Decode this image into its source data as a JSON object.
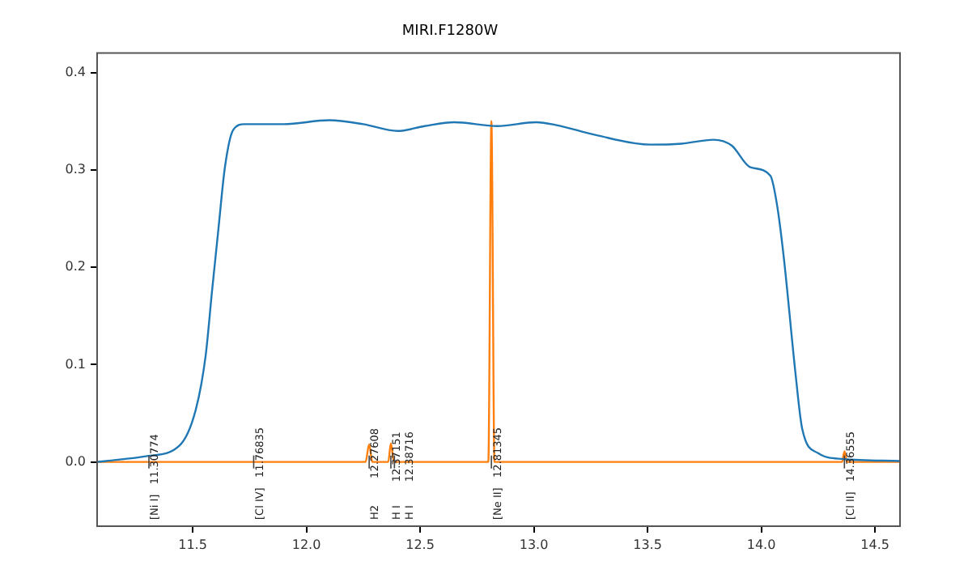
{
  "chart_data": {
    "type": "line",
    "title": "MIRI.F1280W",
    "series": [
      {
        "color": "#1f77b4",
        "x": [
          11.08,
          11.12,
          11.3,
          11.443,
          11.514,
          11.557,
          11.585,
          11.614,
          11.642,
          11.678,
          11.728,
          11.9,
          12.1,
          12.25,
          12.4,
          12.52,
          12.65,
          12.84,
          13.01,
          13.1,
          13.27,
          13.51,
          13.65,
          13.79,
          13.87,
          13.95,
          14.04,
          14.07,
          14.1,
          14.15,
          14.18,
          14.25,
          14.36,
          14.61
        ],
        "values": [
          0,
          0.001,
          0.006,
          0.017,
          0.054,
          0.109,
          0.175,
          0.241,
          0.303,
          0.341,
          0.347,
          0.347,
          0.351,
          0.347,
          0.34,
          0.345,
          0.349,
          0.345,
          0.349,
          0.346,
          0.336,
          0.326,
          0.327,
          0.331,
          0.325,
          0.303,
          0.294,
          0.263,
          0.208,
          0.092,
          0.034,
          0.009,
          0.003,
          0.001
        ]
      },
      {
        "color": "#ff7f0e",
        "x": [
          11.08,
          11.3,
          11.7,
          12.0,
          12.26,
          12.2761,
          12.29,
          12.36,
          12.3715,
          12.385,
          12.8,
          12.8135,
          12.827,
          13.5,
          14.0,
          14.355,
          14.366,
          14.377,
          14.61
        ],
        "values": [
          0,
          0,
          0,
          0,
          0,
          0.018,
          0,
          0,
          0.019,
          0,
          0,
          0.35,
          0,
          0,
          0,
          0,
          0.011,
          0,
          0
        ]
      }
    ],
    "xlim": [
      11.08,
      14.61
    ],
    "xticks": [
      11.5,
      {
        "value": 12,
        "label": "12.0"
      },
      12.5,
      {
        "value": 13,
        "label": "13.0"
      },
      13.5,
      {
        "value": 14,
        "label": "14.0"
      },
      14.5
    ],
    "ylim": [
      -0.066,
      0.42
    ],
    "yticks": [
      {
        "value": 0,
        "label": "0.0"
      },
      0.1,
      0.2,
      0.3,
      0.4
    ],
    "grid": false,
    "ref_lines": [
      {
        "axis": "x",
        "value": 11.30774,
        "label": "[Ni I]   11.30774"
      },
      {
        "axis": "x",
        "value": 11.76835,
        "label": "[Cl IV]   11.76835"
      },
      {
        "axis": "x",
        "value": 12.27608,
        "label": "H2        12.27608"
      },
      {
        "axis": "x",
        "value": 12.37151,
        "label": "H I       12.37151"
      },
      {
        "axis": "x",
        "value": 12.38716,
        "label": "H I       12.38716"
      },
      {
        "axis": "x",
        "value": 12.81345,
        "label": "[Ne II]   12.81345"
      },
      {
        "axis": "x",
        "value": 14.36555,
        "label": "[Cl II]   14.36555"
      }
    ]
  }
}
